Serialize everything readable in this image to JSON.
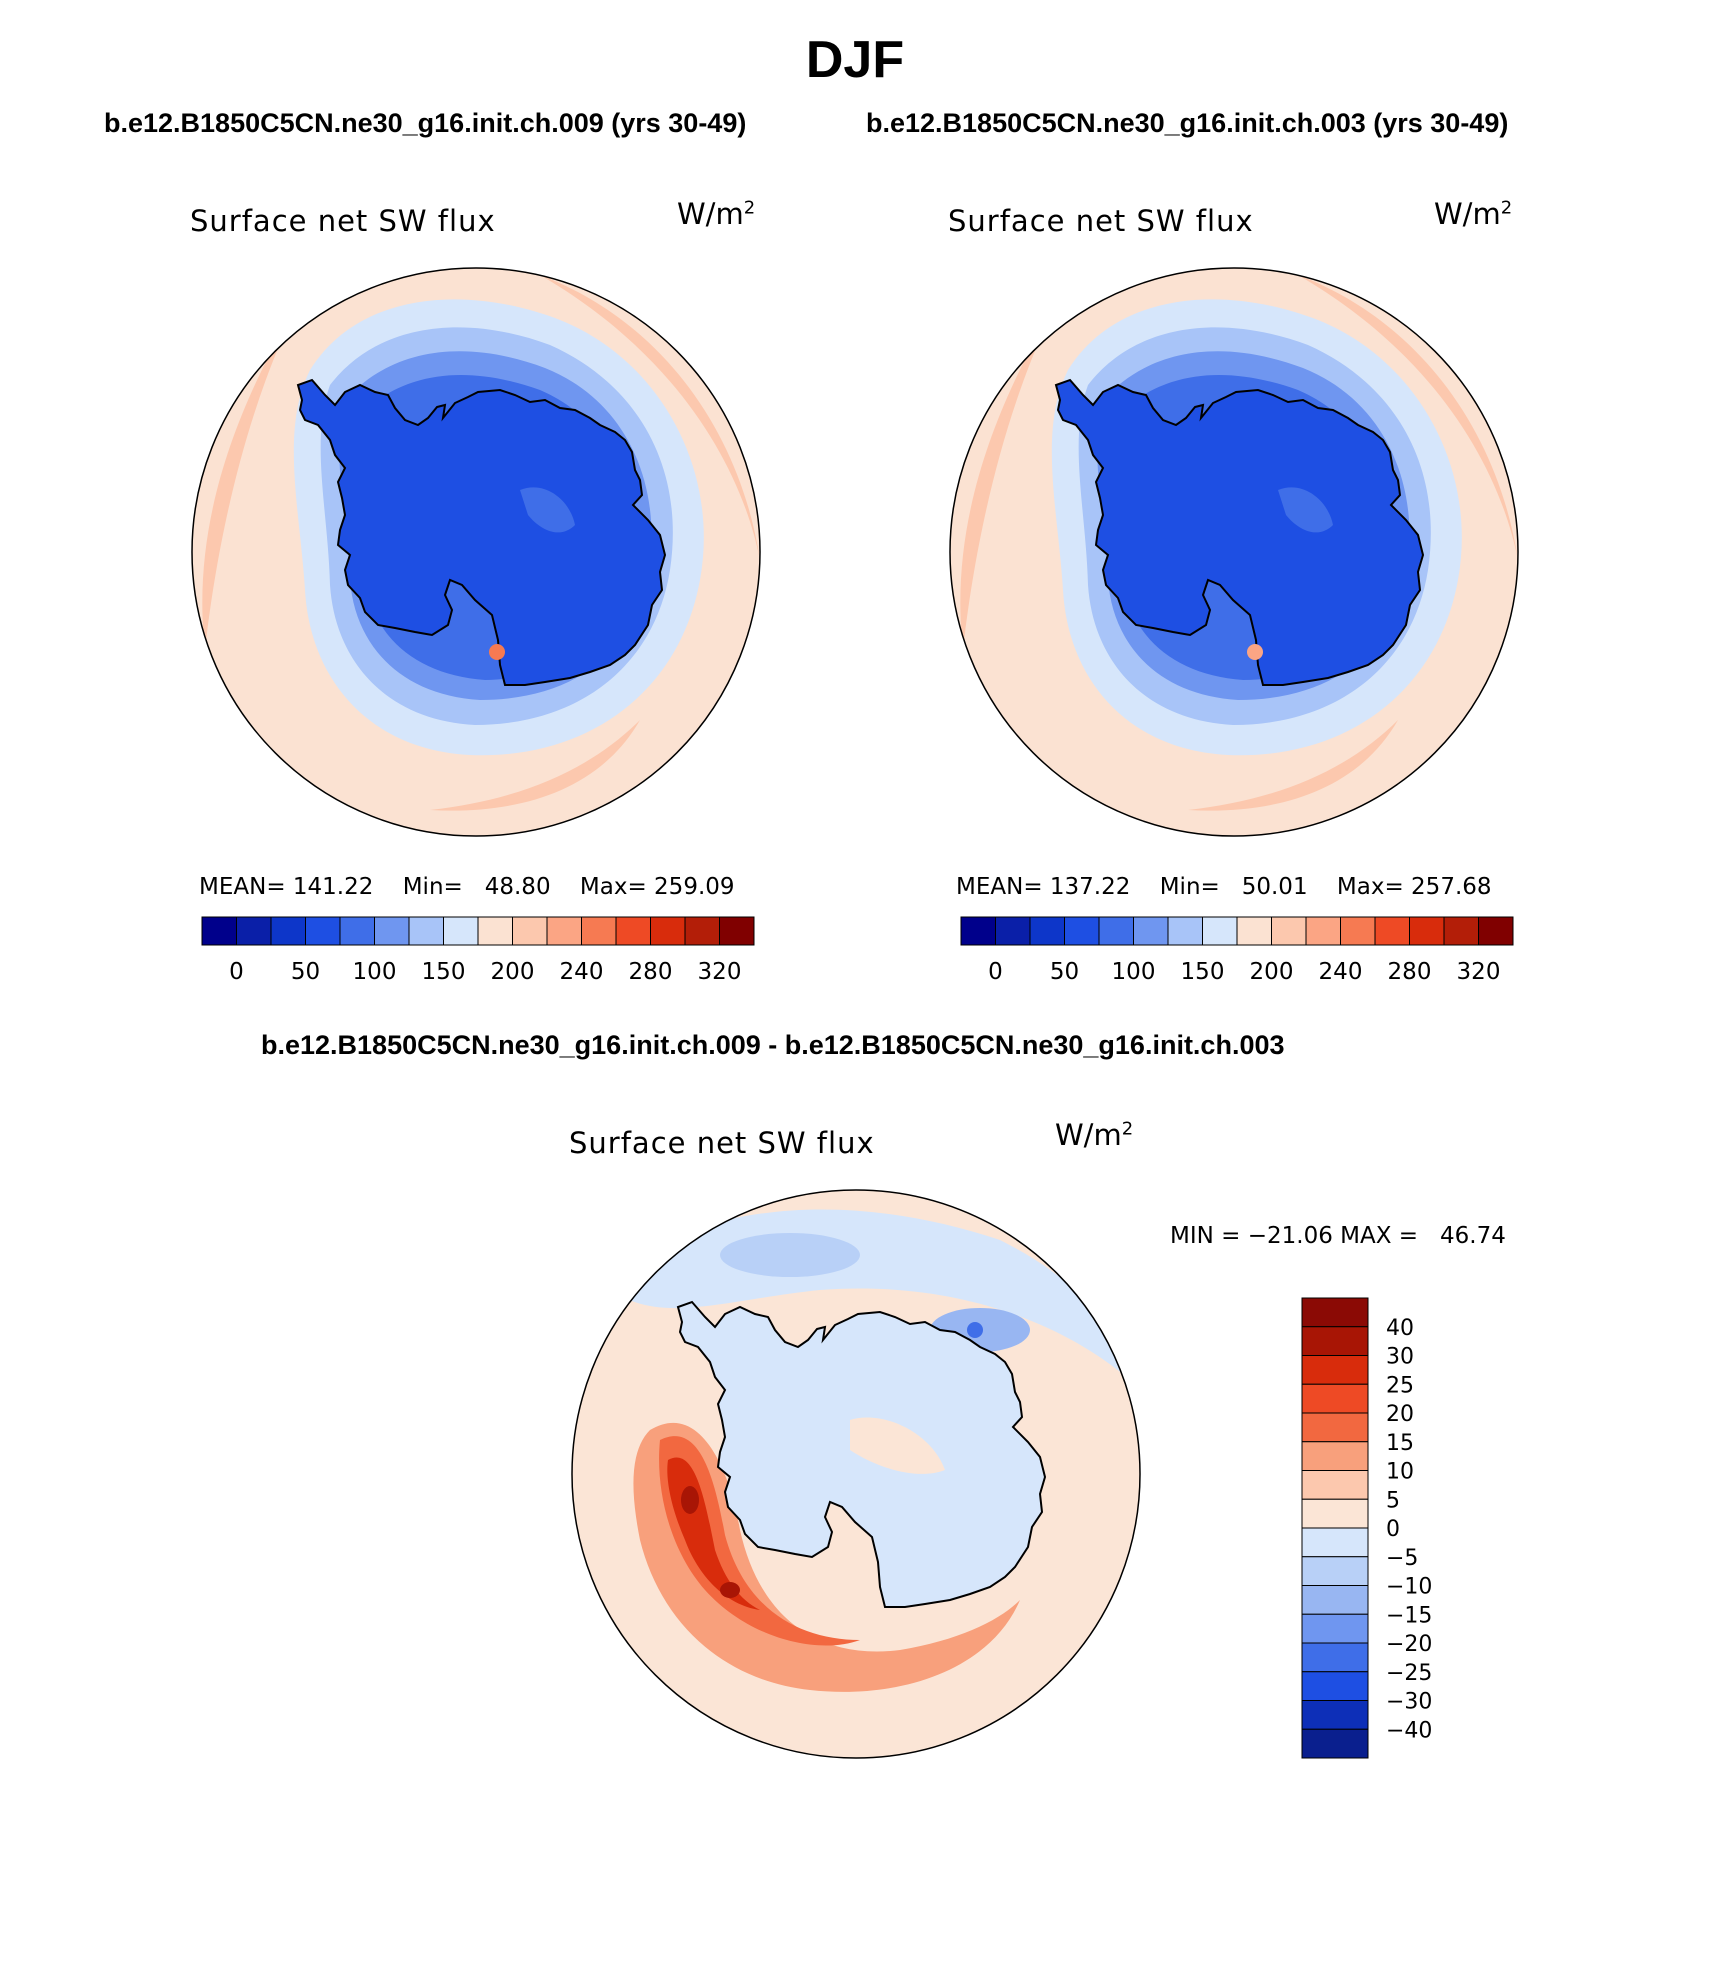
{
  "season": "DJF",
  "case_titles": {
    "left": "b.e12.B1850C5CN.ne30_g16.init.ch.009 (yrs 30-49)",
    "right": "b.e12.B1850C5CN.ne30_g16.init.ch.003 (yrs 30-49)",
    "diff": "b.e12.B1850C5CN.ne30_g16.init.ch.009 - b.e12.B1850C5CN.ne30_g16.init.ch.003"
  },
  "chart_data": [
    {
      "type": "heatmap",
      "projection": "polar-stereographic-south",
      "title": "Surface net SW flux",
      "units_base": "W/m",
      "units_exp": "2",
      "stats": {
        "mean_label": "MEAN=",
        "mean": "141.22",
        "min_label": "Min=",
        "min": "48.80",
        "max_label": "Max=",
        "max": "259.09"
      },
      "colorbar": {
        "orientation": "horizontal",
        "levels": [
          0,
          50,
          100,
          150,
          200,
          240,
          280,
          320
        ],
        "tick_labels": [
          "0",
          "50",
          "100",
          "150",
          "200",
          "240",
          "280",
          "320"
        ],
        "colors": [
          "#00008b",
          "#0a1fa8",
          "#0d36c9",
          "#1e4fe3",
          "#3f6ee8",
          "#6f96f0",
          "#a8c4f8",
          "#d6e6fb",
          "#fbe2d2",
          "#fcc8ae",
          "#fba584",
          "#f67a52",
          "#ee4a25",
          "#d82c0c",
          "#b31e08",
          "#800000"
        ]
      }
    },
    {
      "type": "heatmap",
      "projection": "polar-stereographic-south",
      "title": "Surface net SW flux",
      "units_base": "W/m",
      "units_exp": "2",
      "stats": {
        "mean_label": "MEAN=",
        "mean": "137.22",
        "min_label": "Min=",
        "min": "50.01",
        "max_label": "Max=",
        "max": "257.68"
      },
      "colorbar": {
        "orientation": "horizontal",
        "levels": [
          0,
          50,
          100,
          150,
          200,
          240,
          280,
          320
        ],
        "tick_labels": [
          "0",
          "50",
          "100",
          "150",
          "200",
          "240",
          "280",
          "320"
        ],
        "colors": [
          "#00008b",
          "#0a1fa8",
          "#0d36c9",
          "#1e4fe3",
          "#3f6ee8",
          "#6f96f0",
          "#a8c4f8",
          "#d6e6fb",
          "#fbe2d2",
          "#fcc8ae",
          "#fba584",
          "#f67a52",
          "#ee4a25",
          "#d82c0c",
          "#b31e08",
          "#800000"
        ]
      }
    },
    {
      "type": "heatmap",
      "projection": "polar-stereographic-south",
      "title": "Surface net SW flux",
      "units_base": "W/m",
      "units_exp": "2",
      "stats_text": "MIN = −21.06 MAX =   46.74",
      "min": -21.06,
      "max": 46.74,
      "colorbar": {
        "orientation": "vertical",
        "levels": [
          40,
          30,
          25,
          20,
          15,
          10,
          5,
          0,
          -5,
          -10,
          -15,
          -20,
          -25,
          -30,
          -40
        ],
        "tick_labels": [
          "40",
          "30",
          "25",
          "20",
          "15",
          "10",
          "5",
          "0",
          "−5",
          "−10",
          "−15",
          "−20",
          "−25",
          "−30",
          "−40"
        ],
        "colors": [
          "#8b0a05",
          "#a81505",
          "#d82c0c",
          "#ee4a25",
          "#f26840",
          "#f8a07c",
          "#fcc8ae",
          "#fbe5d6",
          "#d6e6fb",
          "#b8d0f7",
          "#98b6f2",
          "#6f96f0",
          "#3f6ee8",
          "#1e4fe3",
          "#0d2fb8",
          "#0a1f8e"
        ]
      }
    }
  ]
}
